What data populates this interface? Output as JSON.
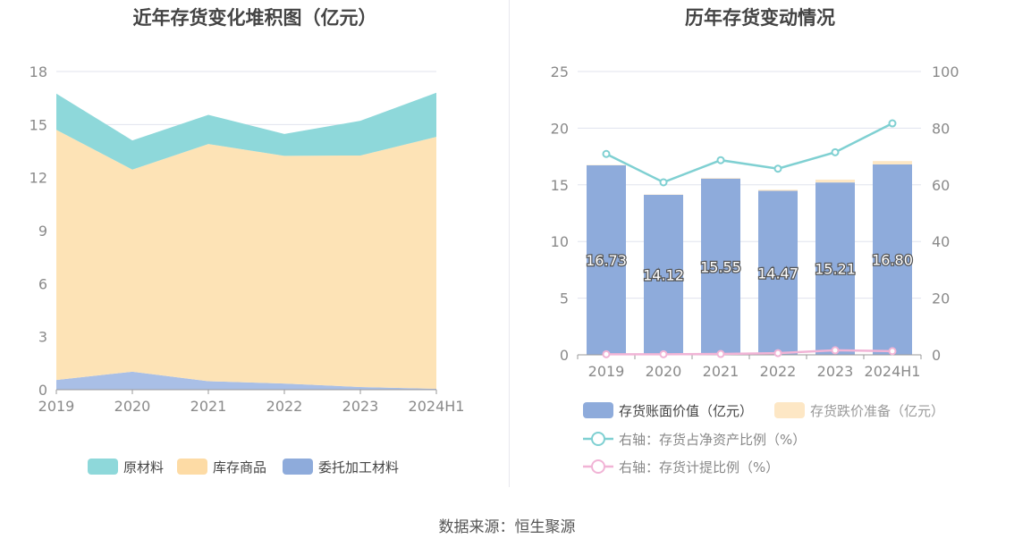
{
  "source_text": "数据来源：恒生聚源",
  "colors": {
    "raw": "#8ed8da",
    "goods": "#fde3b6",
    "entrusted": "#a9bfe6",
    "book_bar": "#8eabdb",
    "reserve_bar": "#fde7c5",
    "ratio_line": "#7fd0d2",
    "provision_line": "#f1b4d6",
    "grid": "#e0e3ee",
    "axis_text": "#8a8a8a"
  },
  "chart_data": [
    {
      "type": "area",
      "title": "近年存货变化堆积图（亿元）",
      "categories": [
        "2019",
        "2020",
        "2021",
        "2022",
        "2023",
        "2024H1"
      ],
      "ylim": [
        0,
        18
      ],
      "yticks": [
        0,
        3,
        6,
        9,
        12,
        15,
        18
      ],
      "stacked": true,
      "grid": true,
      "legend_position": "bottom",
      "series": [
        {
          "name": "委托加工材料",
          "color": "#a9bfe6",
          "values": [
            0.55,
            1.02,
            0.48,
            0.35,
            0.15,
            0.05
          ]
        },
        {
          "name": "库存商品",
          "color": "#fde3b6",
          "values": [
            14.15,
            11.43,
            13.42,
            12.88,
            13.1,
            14.25
          ]
        },
        {
          "name": "原材料",
          "color": "#8ed8da",
          "values": [
            2.05,
            1.65,
            1.65,
            1.24,
            1.96,
            2.5
          ]
        }
      ],
      "legend_icon_colors": [
        "#8ed8da",
        "#fddba5",
        "#8eabdb"
      ]
    },
    {
      "type": "bar",
      "title": "历年存货变动情况",
      "categories": [
        "2019",
        "2020",
        "2021",
        "2022",
        "2023",
        "2024H1"
      ],
      "ylim": [
        0,
        25
      ],
      "yticks": [
        0,
        5,
        10,
        15,
        20,
        25
      ],
      "y2lim": [
        0,
        100
      ],
      "y2ticks": [
        0,
        20,
        40,
        60,
        80,
        100
      ],
      "stacked": true,
      "grid": true,
      "legend_position": "bottom",
      "series": [
        {
          "name": "存货账面价值（亿元）",
          "kind": "bar",
          "axis": "left",
          "color": "#8eabdb",
          "values": [
            16.73,
            14.12,
            15.55,
            14.47,
            15.21,
            16.8
          ],
          "labels": [
            "16.73",
            "14.12",
            "15.55",
            "14.47",
            "15.21",
            "16.80"
          ]
        },
        {
          "name": "存货跌价准备（亿元）",
          "kind": "bar",
          "axis": "left",
          "color": "#fde7c5",
          "values": [
            0.03,
            0.03,
            0.05,
            0.1,
            0.25,
            0.3
          ]
        },
        {
          "name": "右轴：存货占净资产比例（%）",
          "kind": "line",
          "axis": "right",
          "color": "#7fd0d2",
          "values": [
            70.9,
            60.9,
            68.7,
            65.7,
            71.5,
            81.7
          ]
        },
        {
          "name": "右轴：存货计提比例（%）",
          "kind": "line",
          "axis": "right",
          "color": "#f1b4d6",
          "values": [
            0.2,
            0.2,
            0.3,
            0.6,
            1.6,
            1.3
          ]
        }
      ]
    }
  ]
}
